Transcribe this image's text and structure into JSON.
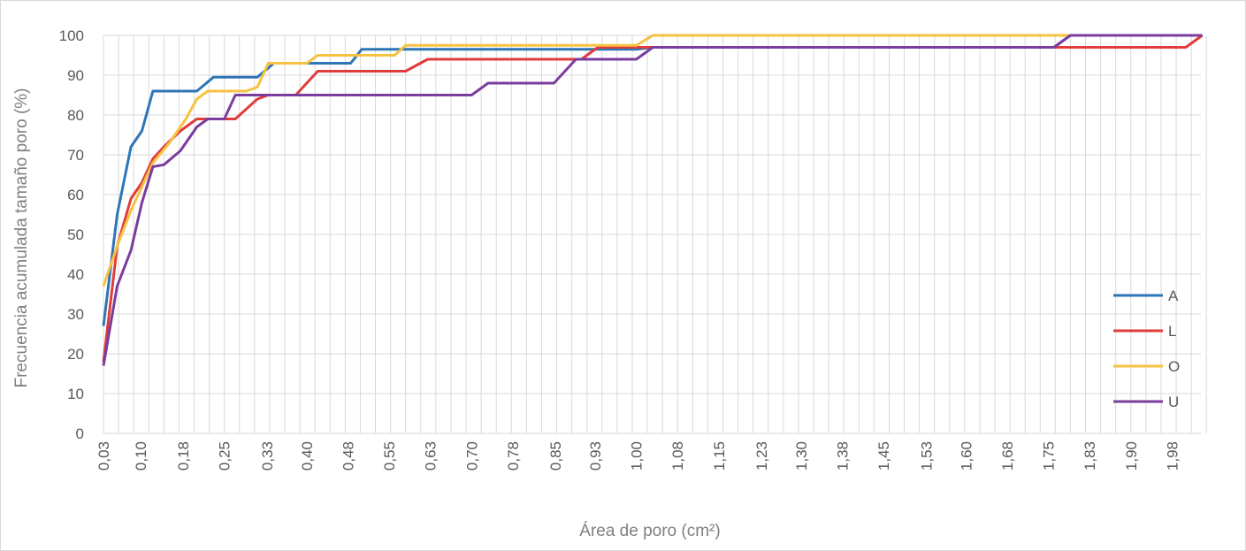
{
  "chart_data": {
    "type": "line",
    "xlabel": "Área de poro (cm²)",
    "ylabel": "Frecuencia acumulada tamaño poro (%)",
    "ylim": [
      0,
      100
    ],
    "yticks": [
      0,
      10,
      20,
      30,
      40,
      50,
      60,
      70,
      80,
      90,
      100
    ],
    "xlim": [
      0.03,
      2.0275
    ],
    "x_category_step": 0.0275,
    "x_tick_labels": [
      "0,03",
      "0,10",
      "0,18",
      "0,25",
      "0,33",
      "0,40",
      "0,48",
      "0,55",
      "0,63",
      "0,70",
      "0,78",
      "0,85",
      "0,93",
      "1,00",
      "1,08",
      "1,15",
      "1,23",
      "1,30",
      "1,38",
      "1,45",
      "1,53",
      "1,60",
      "1,68",
      "1,75",
      "1,83",
      "1,90",
      "1,98"
    ],
    "x_tick_values": [
      0.03,
      0.0975,
      0.175,
      0.25,
      0.3275,
      0.4,
      0.475,
      0.55,
      0.625,
      0.7,
      0.775,
      0.8525,
      0.925,
      1.0,
      1.075,
      1.15,
      1.2275,
      1.3,
      1.375,
      1.45,
      1.5275,
      1.6,
      1.675,
      1.75,
      1.825,
      1.9,
      1.975
    ],
    "grid": true,
    "legend_position": "right",
    "series": [
      {
        "name": "A",
        "color": "#2e75b6",
        "points": [
          [
            0.03,
            27
          ],
          [
            0.055,
            55
          ],
          [
            0.08,
            72
          ],
          [
            0.1,
            76
          ],
          [
            0.12,
            86
          ],
          [
            0.2,
            86
          ],
          [
            0.23,
            89.5
          ],
          [
            0.31,
            89.5
          ],
          [
            0.34,
            93
          ],
          [
            0.44,
            93
          ],
          [
            0.48,
            93
          ],
          [
            0.5,
            96.5
          ],
          [
            0.75,
            96.5
          ],
          [
            1.0,
            96.5
          ],
          [
            1.03,
            97
          ],
          [
            1.76,
            97
          ],
          [
            1.79,
            100
          ],
          [
            2.0,
            100
          ],
          [
            2.03,
            100
          ]
        ]
      },
      {
        "name": "L",
        "color": "#e03c3c",
        "points": [
          [
            0.03,
            18
          ],
          [
            0.055,
            47
          ],
          [
            0.08,
            59
          ],
          [
            0.1,
            63
          ],
          [
            0.12,
            69
          ],
          [
            0.14,
            72
          ],
          [
            0.17,
            76
          ],
          [
            0.2,
            79
          ],
          [
            0.25,
            79
          ],
          [
            0.27,
            79
          ],
          [
            0.31,
            84
          ],
          [
            0.33,
            85
          ],
          [
            0.36,
            85
          ],
          [
            0.38,
            85
          ],
          [
            0.42,
            91
          ],
          [
            0.58,
            91
          ],
          [
            0.62,
            94
          ],
          [
            0.9,
            94
          ],
          [
            0.93,
            97
          ],
          [
            1.0,
            97
          ],
          [
            1.03,
            97
          ],
          [
            1.5,
            97
          ],
          [
            2.0,
            97
          ],
          [
            2.03,
            100
          ]
        ]
      },
      {
        "name": "O",
        "color": "#f5c242",
        "points": [
          [
            0.03,
            37
          ],
          [
            0.055,
            47
          ],
          [
            0.08,
            56
          ],
          [
            0.1,
            62
          ],
          [
            0.12,
            68
          ],
          [
            0.15,
            73
          ],
          [
            0.18,
            79
          ],
          [
            0.2,
            84
          ],
          [
            0.22,
            86
          ],
          [
            0.29,
            86
          ],
          [
            0.31,
            87
          ],
          [
            0.33,
            93
          ],
          [
            0.36,
            93
          ],
          [
            0.4,
            93
          ],
          [
            0.42,
            95
          ],
          [
            0.56,
            95
          ],
          [
            0.58,
            97.5
          ],
          [
            1.0,
            97.5
          ],
          [
            1.03,
            100
          ],
          [
            2.03,
            100
          ]
        ]
      },
      {
        "name": "U",
        "color": "#7a3d9e",
        "points": [
          [
            0.03,
            17
          ],
          [
            0.055,
            37
          ],
          [
            0.08,
            46
          ],
          [
            0.1,
            58
          ],
          [
            0.12,
            67
          ],
          [
            0.14,
            67.5
          ],
          [
            0.17,
            71
          ],
          [
            0.2,
            77
          ],
          [
            0.22,
            79
          ],
          [
            0.25,
            79
          ],
          [
            0.27,
            85
          ],
          [
            0.33,
            85
          ],
          [
            0.36,
            85
          ],
          [
            0.7,
            85
          ],
          [
            0.73,
            88
          ],
          [
            0.85,
            88
          ],
          [
            0.89,
            94
          ],
          [
            1.0,
            94
          ],
          [
            1.03,
            97
          ],
          [
            1.76,
            97
          ],
          [
            1.79,
            100
          ],
          [
            2.0,
            100
          ],
          [
            2.03,
            100
          ]
        ]
      }
    ]
  }
}
